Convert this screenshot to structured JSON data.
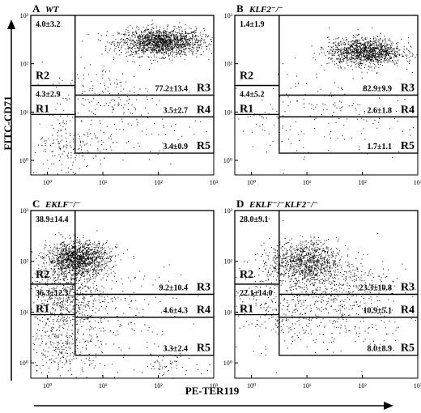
{
  "figure": {
    "y_axis_label": "FITC-CD71",
    "x_axis_label": "PE-TER119"
  },
  "chart_data": [
    {
      "type": "scatter",
      "panel": "A",
      "title": "WT",
      "xscale": "log",
      "yscale": "log",
      "xlim": [
        0.5,
        1000
      ],
      "ylim": [
        0.5,
        1000
      ],
      "x_ticks": [
        "10⁰",
        "10¹",
        "10²",
        "10³"
      ],
      "y_ticks": [
        "10⁰",
        "10¹",
        "10²",
        "10³"
      ],
      "gates": [
        {
          "name": "R2",
          "value": "4.0±3.2"
        },
        {
          "name": "R1",
          "value": "4.3±2.9"
        },
        {
          "name": "R3",
          "value": "77.2±13.4"
        },
        {
          "name": "R4",
          "value": "3.5±2.7"
        },
        {
          "name": "R5",
          "value": "3.4±0.9"
        }
      ]
    },
    {
      "type": "scatter",
      "panel": "B",
      "title": "KLF2⁻/⁻",
      "xscale": "log",
      "yscale": "log",
      "xlim": [
        0.5,
        1000
      ],
      "ylim": [
        0.5,
        1000
      ],
      "x_ticks": [
        "10⁰",
        "10¹",
        "10²",
        "10³"
      ],
      "y_ticks": [
        "10⁰",
        "10¹",
        "10²",
        "10³"
      ],
      "gates": [
        {
          "name": "R2",
          "value": "1.4±1.9"
        },
        {
          "name": "R1",
          "value": "4.4±5.2"
        },
        {
          "name": "R3",
          "value": "82.9±9.9"
        },
        {
          "name": "R4",
          "value": "2.6±1.8"
        },
        {
          "name": "R5",
          "value": "1.7±1.1"
        }
      ]
    },
    {
      "type": "scatter",
      "panel": "C",
      "title": "EKLF⁻/⁻",
      "xscale": "log",
      "yscale": "log",
      "xlim": [
        0.5,
        1000
      ],
      "ylim": [
        0.5,
        1000
      ],
      "x_ticks": [
        "10⁰",
        "10¹",
        "10²",
        "10³"
      ],
      "y_ticks": [
        "10⁰",
        "10¹",
        "10²",
        "10³"
      ],
      "gates": [
        {
          "name": "R2",
          "value": "38.9±14.4"
        },
        {
          "name": "R1",
          "value": "36.3±12.3"
        },
        {
          "name": "R3",
          "value": "9.2±10.4"
        },
        {
          "name": "R4",
          "value": "4.6±4.3"
        },
        {
          "name": "R5",
          "value": "3.3±2.4"
        }
      ]
    },
    {
      "type": "scatter",
      "panel": "D",
      "title": "EKLF⁻/⁻KLF2⁻/⁻",
      "xscale": "log",
      "yscale": "log",
      "xlim": [
        0.5,
        1000
      ],
      "ylim": [
        0.5,
        1000
      ],
      "x_ticks": [
        "10⁰",
        "10¹",
        "10²",
        "10³"
      ],
      "y_ticks": [
        "10⁰",
        "10¹",
        "10²",
        "10³"
      ],
      "gates": [
        {
          "name": "R2",
          "value": "28.0±9.1"
        },
        {
          "name": "R1",
          "value": "22.1±14.0"
        },
        {
          "name": "R3",
          "value": "23.3±10.8"
        },
        {
          "name": "R4",
          "value": "10.9±5.1"
        },
        {
          "name": "R5",
          "value": "8.0±8.9"
        }
      ]
    }
  ]
}
